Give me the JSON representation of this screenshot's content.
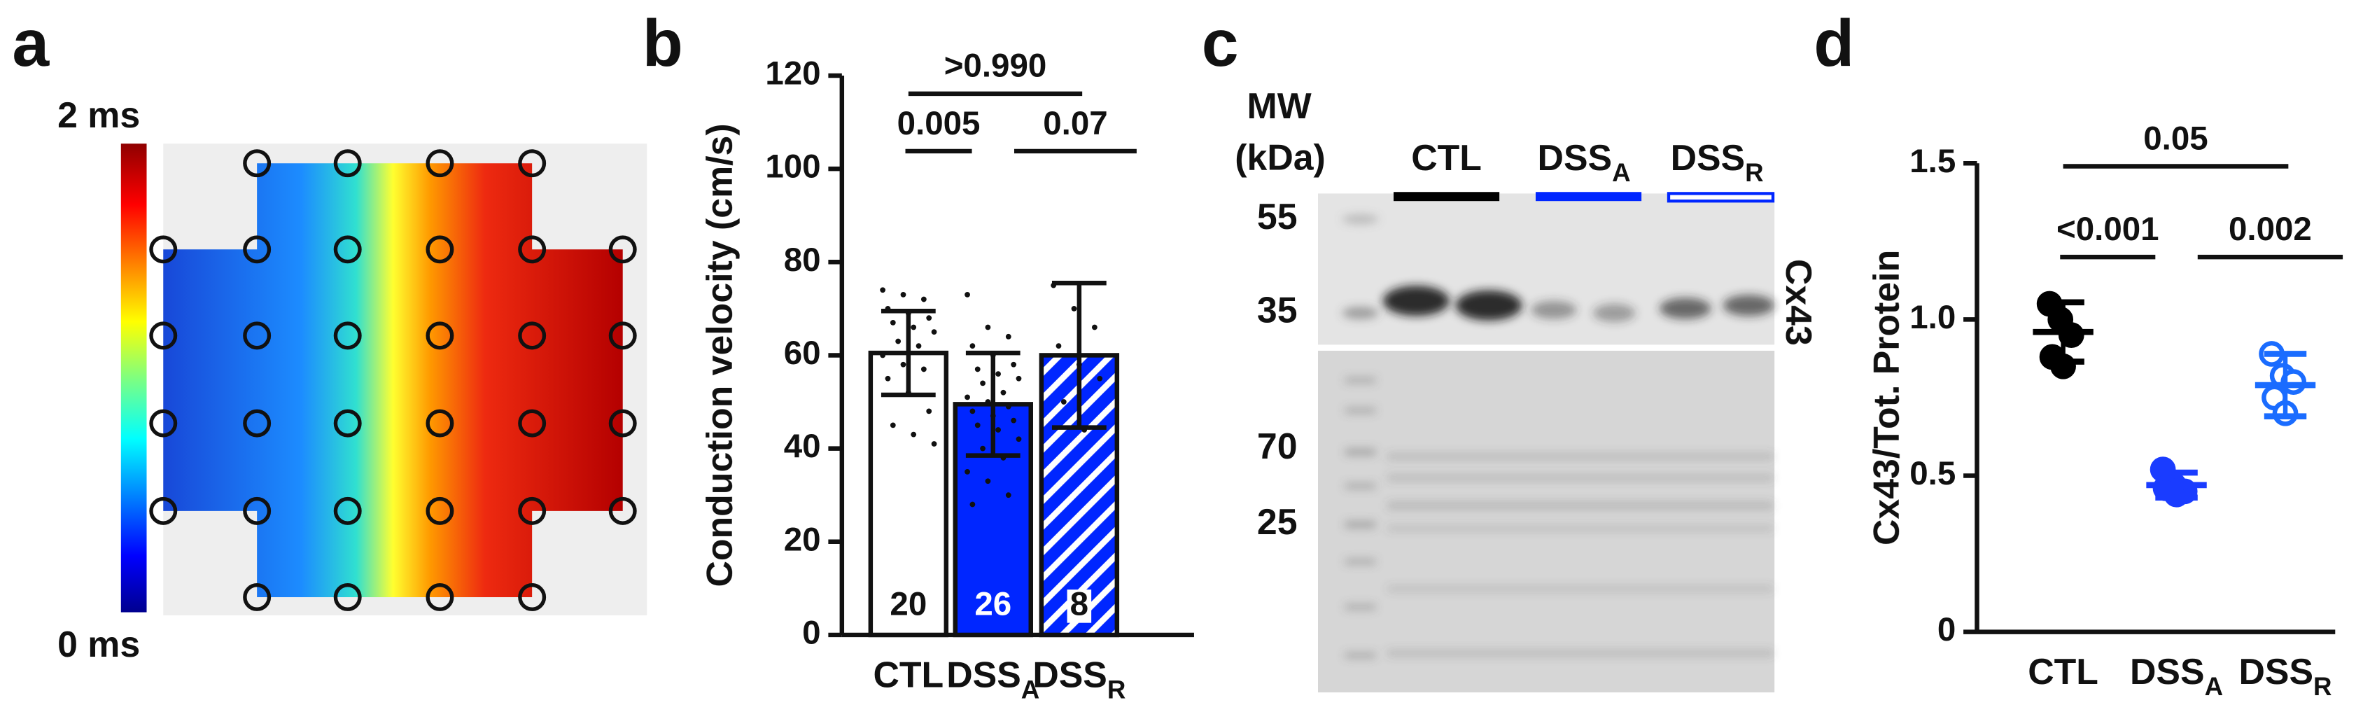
{
  "chart_data": [
    {
      "type": "activation-map",
      "panel": "a",
      "colorbar_max_label": "2 ms",
      "colorbar_min_label": "0 ms"
    },
    {
      "type": "bar",
      "panel": "b",
      "ylabel": "Conduction velocity (cm/s)",
      "categories": [
        "CTL",
        "DSS",
        "DSS"
      ],
      "category_subscripts": [
        null,
        "A",
        "R"
      ],
      "values": [
        60.5,
        49.5,
        60
      ],
      "errors": [
        9,
        11,
        15.5
      ],
      "n": [
        20,
        26,
        8
      ],
      "points": [
        [
          74,
          73,
          72,
          70,
          69,
          68,
          67,
          66,
          65,
          63,
          62,
          60,
          58,
          57,
          55,
          52,
          48,
          45,
          43,
          41
        ],
        [
          73,
          66,
          64,
          62,
          60,
          58,
          57,
          56,
          55,
          54,
          52,
          51,
          50,
          49,
          48,
          47,
          46,
          45,
          44,
          42,
          40,
          38,
          35,
          33,
          30,
          28
        ],
        [
          75,
          70,
          66,
          62,
          58,
          55,
          50,
          44
        ]
      ],
      "colors": [
        "#ffffff",
        "#0026ff",
        "#0026ff"
      ],
      "fill_styles": [
        "solid",
        "solid",
        "hatched"
      ],
      "ylim": [
        0,
        120
      ],
      "yticks": [
        0,
        20,
        40,
        60,
        80,
        100,
        120
      ],
      "brackets": [
        {
          "from": 0,
          "to": 1,
          "label": "0.005"
        },
        {
          "from": 1,
          "to": 2,
          "label": "0.07"
        },
        {
          "from": 0,
          "to": 2,
          "label": ">0.990"
        }
      ]
    },
    {
      "type": "dot",
      "panel": "d",
      "ylabel": "Cx43/Tot. Protein",
      "categories": [
        "CTL",
        "DSS",
        "DSS"
      ],
      "category_subscripts": [
        null,
        "A",
        "R"
      ],
      "values": [
        0.96,
        0.47,
        0.79
      ],
      "errors": [
        0.095,
        0.04,
        0.1
      ],
      "points": [
        [
          1.05,
          1.0,
          0.95,
          0.88,
          0.85
        ],
        [
          0.52,
          0.47,
          0.45,
          0.46,
          0.44
        ],
        [
          0.89,
          0.82,
          0.8,
          0.75,
          0.7
        ]
      ],
      "colors": [
        "#000000",
        "#1a3cff",
        "#1a6cff"
      ],
      "marker_fill": [
        "filled",
        "filled",
        "open"
      ],
      "ylim": [
        0,
        1.5
      ],
      "yticks": [
        0,
        0.5,
        {
          "value": 1,
          "label": "1.0"
        },
        1.5
      ],
      "brackets": [
        {
          "from": 0,
          "to": 1,
          "label": "<0.001"
        },
        {
          "from": 1,
          "to": 2,
          "label": "0.002"
        },
        {
          "from": 0,
          "to": 2,
          "label": "0.05"
        }
      ]
    }
  ],
  "blot": {
    "panel": "c",
    "mw_label": "MW",
    "unit_label": "(kDa)",
    "lanes": [
      "CTL",
      "DSS",
      "DSS"
    ],
    "lane_subscripts": [
      null,
      "A",
      "R"
    ],
    "markers": [
      55,
      35,
      70,
      25
    ],
    "protein": "Cx43"
  }
}
